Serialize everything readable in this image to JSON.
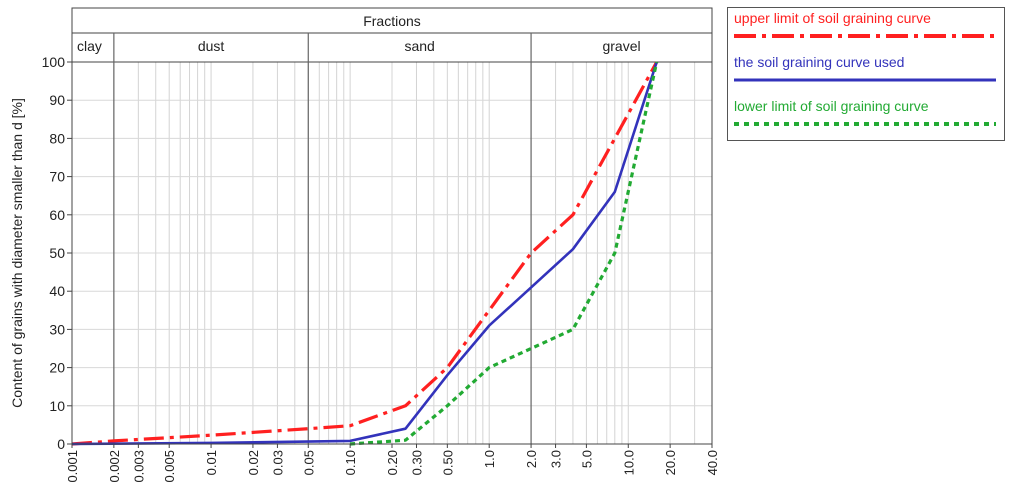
{
  "chart_data": {
    "type": "line",
    "title": "Fractions",
    "ylabel": "Content of grains with diameter smaller than d [%]",
    "xlabel": "",
    "x_scale": "log",
    "xlim": [
      0.001,
      40.0
    ],
    "ylim": [
      0,
      100
    ],
    "x_ticks": [
      {
        "value": 0.001,
        "label": "0.001"
      },
      {
        "value": 0.002,
        "label": "0.002"
      },
      {
        "value": 0.003,
        "label": "0.003"
      },
      {
        "value": 0.005,
        "label": "0.005"
      },
      {
        "value": 0.01,
        "label": "0.01"
      },
      {
        "value": 0.02,
        "label": "0.02"
      },
      {
        "value": 0.03,
        "label": "0.03"
      },
      {
        "value": 0.05,
        "label": "0.05"
      },
      {
        "value": 0.1,
        "label": "0.10"
      },
      {
        "value": 0.2,
        "label": "0.20"
      },
      {
        "value": 0.3,
        "label": "0.30"
      },
      {
        "value": 0.5,
        "label": "0.50"
      },
      {
        "value": 1.0,
        "label": "1.0"
      },
      {
        "value": 2.0,
        "label": "2.0"
      },
      {
        "value": 3.0,
        "label": "3.0"
      },
      {
        "value": 5.0,
        "label": "5.0"
      },
      {
        "value": 10.0,
        "label": "10.0"
      },
      {
        "value": 20.0,
        "label": "20.0"
      },
      {
        "value": 40.0,
        "label": "40.0"
      }
    ],
    "y_ticks": [
      0,
      10,
      20,
      30,
      40,
      50,
      60,
      70,
      80,
      90,
      100
    ],
    "fractions": [
      {
        "label": "clay",
        "from": 0.001,
        "to": 0.002
      },
      {
        "label": "dust",
        "from": 0.002,
        "to": 0.05
      },
      {
        "label": "sand",
        "from": 0.05,
        "to": 2.0
      },
      {
        "label": "gravel",
        "from": 2.0,
        "to": 40.0
      }
    ],
    "series": [
      {
        "name": "upper limit of soil graining curve",
        "color": "#ff2020",
        "style": "dash-dot",
        "points": [
          [
            0.001,
            0
          ],
          [
            0.002,
            0.8
          ],
          [
            0.01,
            2.3
          ],
          [
            0.05,
            4.0
          ],
          [
            0.1,
            4.8
          ],
          [
            0.25,
            10
          ],
          [
            0.5,
            20
          ],
          [
            1.0,
            35
          ],
          [
            2.0,
            50
          ],
          [
            4.0,
            60
          ],
          [
            8.0,
            80
          ],
          [
            16.0,
            100
          ]
        ]
      },
      {
        "name": "the soil graining curve used",
        "color": "#3333bb",
        "style": "solid",
        "points": [
          [
            0.001,
            0
          ],
          [
            0.01,
            0.3
          ],
          [
            0.1,
            0.8
          ],
          [
            0.25,
            4
          ],
          [
            0.5,
            18
          ],
          [
            1.0,
            31
          ],
          [
            2.0,
            41
          ],
          [
            4.0,
            51
          ],
          [
            8.0,
            66
          ],
          [
            16.0,
            100
          ]
        ]
      },
      {
        "name": "lower limit of soil graining curve",
        "color": "#22aa33",
        "style": "dotted",
        "points": [
          [
            0.1,
            0
          ],
          [
            0.25,
            1
          ],
          [
            0.5,
            10
          ],
          [
            1.0,
            20
          ],
          [
            2.0,
            25
          ],
          [
            4.0,
            30
          ],
          [
            8.0,
            50
          ],
          [
            16.0,
            100
          ]
        ]
      }
    ],
    "legend": "right-outside"
  }
}
